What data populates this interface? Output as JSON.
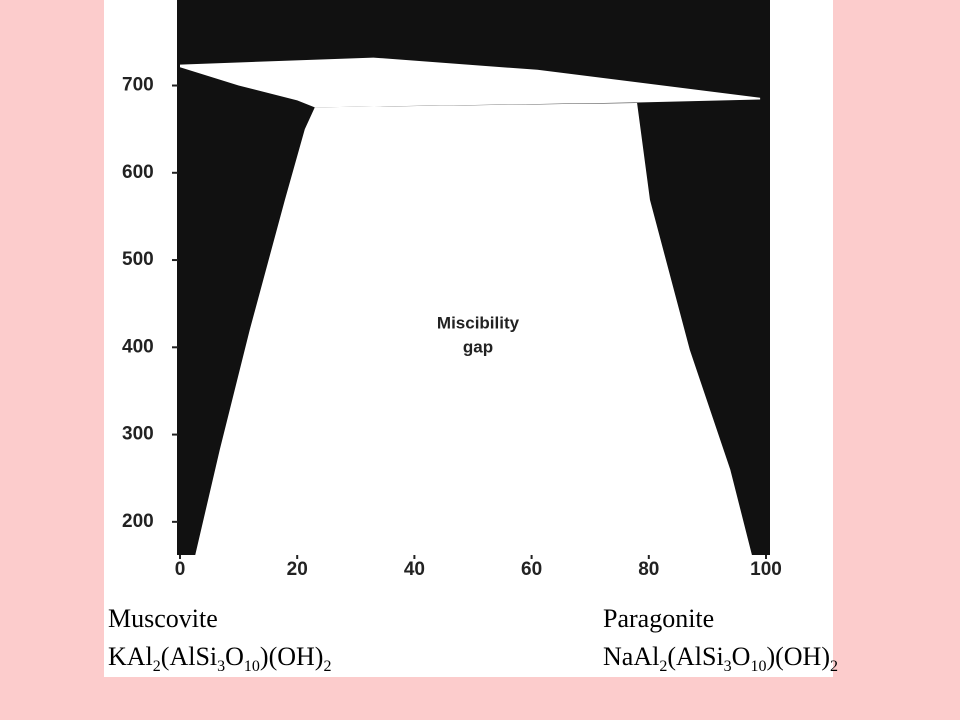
{
  "chart_data": {
    "type": "phase-diagram",
    "xlim": [
      0,
      100
    ],
    "ylim": [
      162,
      798
    ],
    "xticks": [
      0,
      20,
      40,
      60,
      80,
      100
    ],
    "yticks": [
      200,
      300,
      400,
      500,
      600,
      700
    ],
    "background": "#111111",
    "regions": [
      {
        "color": "#ffffff",
        "x": [
          0,
          33,
          61,
          99,
          99,
          78,
          23,
          20,
          10,
          0
        ],
        "y": [
          724,
          732,
          718,
          686,
          684,
          680.5,
          675,
          683,
          700,
          721
        ]
      },
      {
        "color": "#ffffff",
        "x": [
          23,
          78,
          80.2,
          87,
          93.9,
          97.6,
          2.6,
          6.8,
          11.9,
          17.9,
          21.3
        ],
        "y": [
          675,
          680,
          569,
          397,
          260,
          162,
          162,
          283,
          420,
          569,
          650
        ]
      }
    ],
    "annotation": [
      "Miscibility",
      "gap"
    ],
    "end_members": [
      {
        "name": "Muscovite",
        "formula": "KAl2(AlSi3O10)(OH)2"
      },
      {
        "name": "Paragonite",
        "formula": "NaAl2(AlSi3O10)(OH)2"
      }
    ]
  }
}
